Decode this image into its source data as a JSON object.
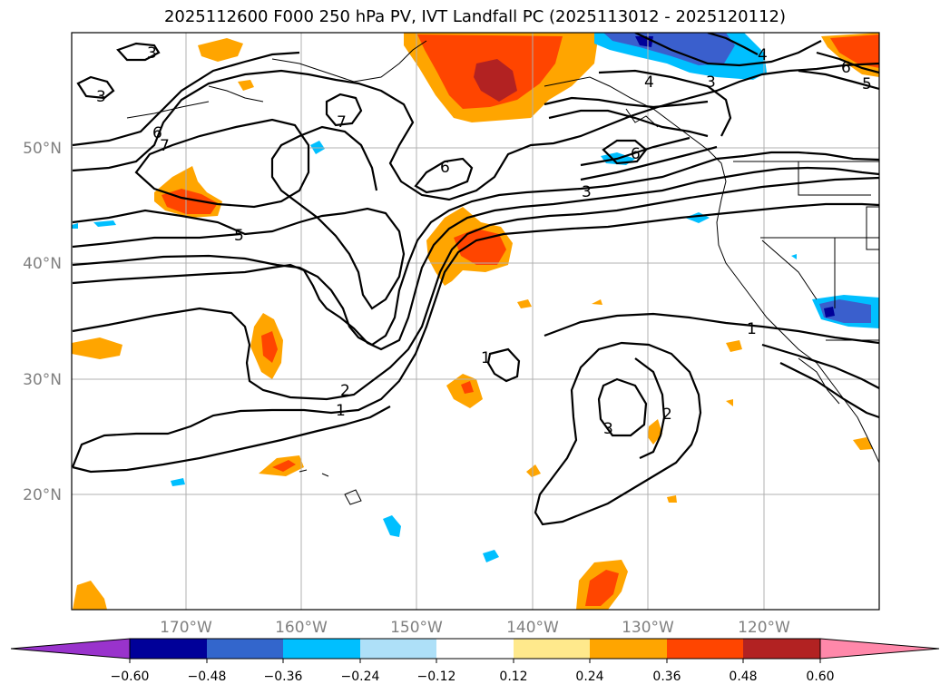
{
  "title": "2025112600 F000 250 hPa PV, IVT Landfall PC (2025113012 - 2025120112)",
  "lat_labels": [
    "50°N",
    "40°N",
    "30°N",
    "20°N"
  ],
  "lon_labels": [
    "170°W",
    "160°W",
    "150°W",
    "140°W",
    "130°W",
    "120°W"
  ],
  "colorbar": {
    "ticks": [
      "−0.60",
      "−0.48",
      "−0.36",
      "−0.24",
      "−0.12",
      "0.12",
      "0.24",
      "0.36",
      "0.48",
      "0.60"
    ],
    "colors": [
      "#9933cc",
      "#000099",
      "#3366cc",
      "#00bfff",
      "#aee0f8",
      "#ffffff",
      "#ffe98c",
      "#ffa500",
      "#ff4500",
      "#b22222",
      "#ff88aa"
    ]
  },
  "contour_labels": {
    "c3a": "3",
    "c3b": "3",
    "c6a": "6",
    "c7a": "7",
    "c7b": "7",
    "c6b": "6",
    "c5a": "5",
    "c3c": "3",
    "c6c": "6",
    "c4a": "4",
    "c3d": "3",
    "c6d": "6",
    "c5b": "5",
    "c1a": "1",
    "c1b": "1",
    "c2a": "2",
    "c1c": "1",
    "c3e": "3",
    "c2b": "2",
    "c4b": "4"
  },
  "colors": {
    "orange": "#ffa500",
    "redorange": "#ff4500",
    "darkred": "#b22222",
    "skyblue": "#00bfff",
    "royal": "#3a5fcd",
    "navy": "#000099",
    "pink": "#ff88aa"
  }
}
